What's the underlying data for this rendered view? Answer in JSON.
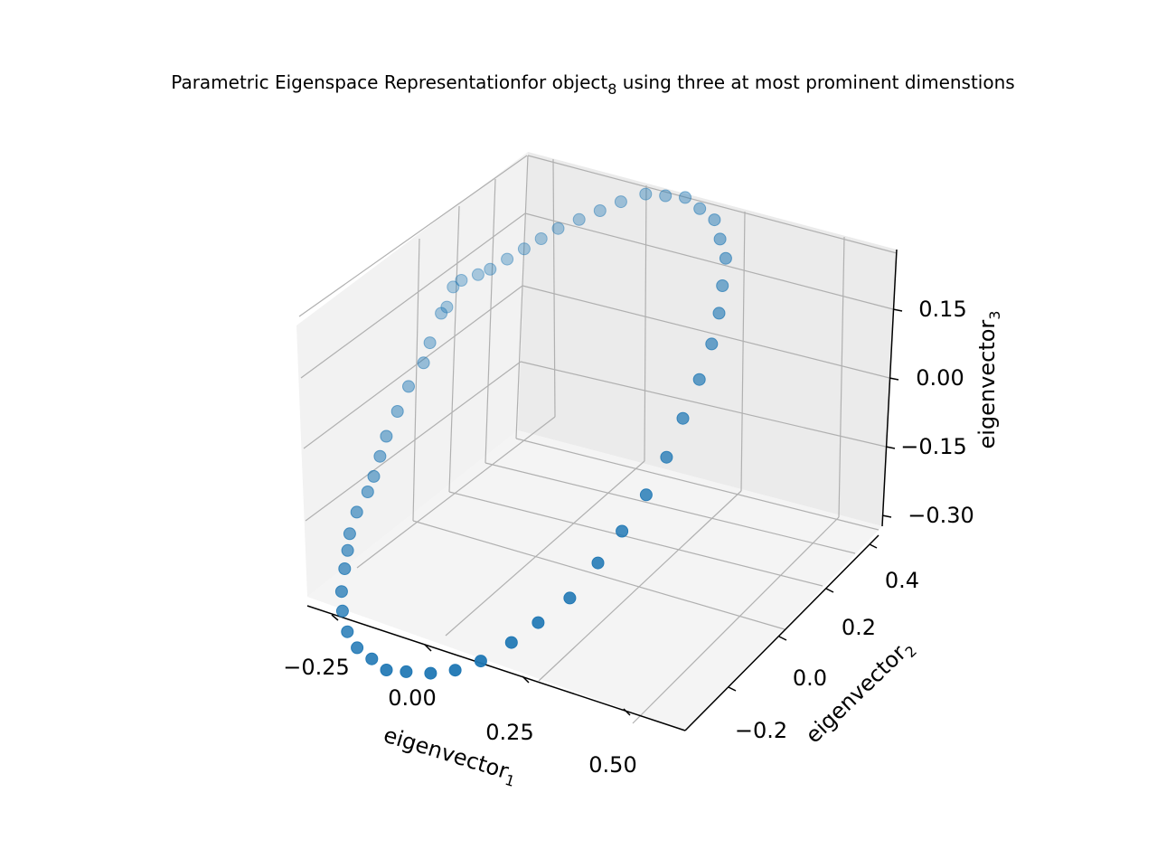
{
  "chart_data": {
    "type": "scatter",
    "projection": "3d",
    "title": {
      "prefix": "Parametric Eigenspace Representationfor object",
      "subscript": "8",
      "suffix": " using three at most prominent dimenstions"
    },
    "axes": {
      "x": {
        "label_base": "eigenvector",
        "label_sub": "1",
        "ticks": [
          "−0.25",
          "0.00",
          "0.25",
          "0.50"
        ],
        "tick_values": [
          -0.25,
          0.0,
          0.25,
          0.5
        ],
        "range": [
          -0.32,
          0.62
        ]
      },
      "y": {
        "label_base": "eigenvector",
        "label_sub": "2",
        "ticks": [
          "−0.2",
          "0.0",
          "0.2",
          "0.4"
        ],
        "tick_values": [
          -0.2,
          0.0,
          0.2,
          0.4
        ],
        "range": [
          -0.3,
          0.45
        ]
      },
      "z": {
        "label_base": "eigenvector",
        "label_sub": "3",
        "ticks": [
          "−0.30",
          "−0.15",
          "0.00",
          "0.15"
        ],
        "tick_values": [
          -0.3,
          -0.15,
          0.0,
          0.15
        ],
        "range": [
          -0.33,
          0.25
        ]
      }
    },
    "grid": true,
    "pane_color": "#f2f2f2",
    "grid_color": "#b0b0b0",
    "marker_color": "#1f77b4",
    "points": [
      {
        "x": -0.26,
        "y": 0.22,
        "z": -0.1
      },
      {
        "x": -0.25,
        "y": 0.2,
        "z": -0.12
      },
      {
        "x": -0.24,
        "y": 0.18,
        "z": -0.11
      },
      {
        "x": -0.23,
        "y": 0.15,
        "z": -0.14
      },
      {
        "x": -0.22,
        "y": 0.13,
        "z": -0.16
      },
      {
        "x": -0.22,
        "y": 0.1,
        "z": -0.18
      },
      {
        "x": -0.21,
        "y": 0.07,
        "z": -0.2
      },
      {
        "x": -0.2,
        "y": 0.04,
        "z": -0.22
      },
      {
        "x": -0.19,
        "y": 0.02,
        "z": -0.24
      },
      {
        "x": -0.18,
        "y": 0.0,
        "z": -0.26
      },
      {
        "x": -0.17,
        "y": -0.02,
        "z": -0.27
      },
      {
        "x": -0.16,
        "y": -0.05,
        "z": -0.28
      },
      {
        "x": -0.14,
        "y": -0.08,
        "z": -0.29
      },
      {
        "x": -0.12,
        "y": -0.1,
        "z": -0.3
      },
      {
        "x": -0.09,
        "y": -0.13,
        "z": -0.3
      },
      {
        "x": -0.06,
        "y": -0.16,
        "z": -0.31
      },
      {
        "x": -0.02,
        "y": -0.19,
        "z": -0.31
      },
      {
        "x": 0.03,
        "y": -0.22,
        "z": -0.31
      },
      {
        "x": 0.08,
        "y": -0.24,
        "z": -0.31
      },
      {
        "x": 0.13,
        "y": -0.25,
        "z": -0.31
      },
      {
        "x": 0.18,
        "y": -0.26,
        "z": -0.31
      },
      {
        "x": 0.23,
        "y": -0.26,
        "z": -0.3
      },
      {
        "x": 0.28,
        "y": -0.25,
        "z": -0.3
      },
      {
        "x": 0.33,
        "y": -0.24,
        "z": -0.29
      },
      {
        "x": 0.37,
        "y": -0.22,
        "z": -0.28
      },
      {
        "x": 0.41,
        "y": -0.19,
        "z": -0.26
      },
      {
        "x": 0.44,
        "y": -0.16,
        "z": -0.24
      },
      {
        "x": 0.47,
        "y": -0.12,
        "z": -0.22
      },
      {
        "x": 0.49,
        "y": -0.08,
        "z": -0.18
      },
      {
        "x": 0.5,
        "y": -0.04,
        "z": -0.15
      },
      {
        "x": 0.51,
        "y": 0.0,
        "z": -0.11
      },
      {
        "x": 0.51,
        "y": 0.04,
        "z": -0.07
      },
      {
        "x": 0.5,
        "y": 0.08,
        "z": -0.03
      },
      {
        "x": 0.49,
        "y": 0.12,
        "z": 0.01
      },
      {
        "x": 0.47,
        "y": 0.16,
        "z": 0.04
      },
      {
        "x": 0.45,
        "y": 0.19,
        "z": 0.07
      },
      {
        "x": 0.42,
        "y": 0.22,
        "z": 0.09
      },
      {
        "x": 0.39,
        "y": 0.25,
        "z": 0.11
      },
      {
        "x": 0.35,
        "y": 0.27,
        "z": 0.12
      },
      {
        "x": 0.31,
        "y": 0.29,
        "z": 0.13
      },
      {
        "x": 0.26,
        "y": 0.3,
        "z": 0.13
      },
      {
        "x": 0.21,
        "y": 0.31,
        "z": 0.13
      },
      {
        "x": 0.16,
        "y": 0.31,
        "z": 0.12
      },
      {
        "x": 0.11,
        "y": 0.31,
        "z": 0.11
      },
      {
        "x": 0.06,
        "y": 0.3,
        "z": 0.09
      },
      {
        "x": 0.02,
        "y": 0.29,
        "z": 0.07
      },
      {
        "x": -0.02,
        "y": 0.28,
        "z": 0.05
      },
      {
        "x": -0.06,
        "y": 0.27,
        "z": 0.03
      },
      {
        "x": -0.09,
        "y": 0.26,
        "z": 0.01
      },
      {
        "x": -0.12,
        "y": 0.25,
        "z": -0.01
      },
      {
        "x": -0.15,
        "y": 0.24,
        "z": -0.03
      },
      {
        "x": -0.18,
        "y": 0.23,
        "z": -0.05
      },
      {
        "x": -0.21,
        "y": 0.23,
        "z": -0.07
      },
      {
        "x": -0.24,
        "y": 0.22,
        "z": -0.08
      }
    ]
  }
}
